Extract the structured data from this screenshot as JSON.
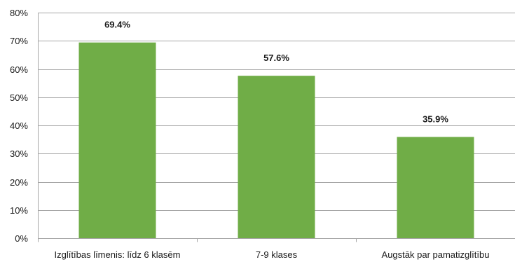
{
  "chart_data": {
    "type": "bar",
    "categories": [
      "Izglītības līmenis: līdz 6 klasēm",
      "7-9 klases",
      "Augstāk par pamatizglītību"
    ],
    "values": [
      69.4,
      57.6,
      35.9
    ],
    "data_labels": [
      "69.4%",
      "57.6%",
      "35.9%"
    ],
    "y_ticks": [
      "0%",
      "10%",
      "20%",
      "30%",
      "40%",
      "50%",
      "60%",
      "70%",
      "80%"
    ],
    "ylim": [
      0,
      80
    ],
    "title": "",
    "xlabel": "",
    "ylabel": "",
    "grid": true,
    "legend": "none",
    "colors": {
      "bar": "#70ad47",
      "grid": "#a6a6a6",
      "axis": "#a6a6a6",
      "text": "#1a1a1a"
    }
  }
}
